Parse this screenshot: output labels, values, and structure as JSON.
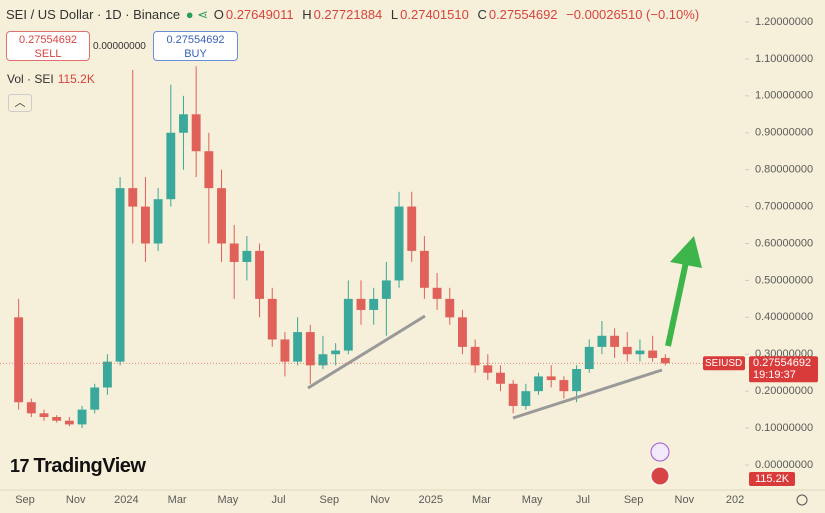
{
  "header": {
    "title": "SEI / US Dollar · 1D · Binance",
    "o_label": "O",
    "o": "0.27649011",
    "h_label": "H",
    "h": "0.27721884",
    "l_label": "L",
    "l": "0.27401510",
    "c_label": "C",
    "c": "0.27554692",
    "change": "−0.00026510 (−0.10%)"
  },
  "trade": {
    "sell_price": "0.27554692",
    "sell": "SELL",
    "spread": "0.00000000",
    "buy_price": "0.27554692",
    "buy": "BUY"
  },
  "volume": {
    "label": "Vol · SEI",
    "value": "115.2K",
    "tag": "115.2K"
  },
  "price_tag": {
    "symbol": "SEIUSD",
    "price": "0.27554692",
    "countdown": "19:19:37"
  },
  "logo": "TradingView",
  "chart_data": {
    "type": "candlestick",
    "categories": [
      null,
      "Sep",
      null,
      null,
      null,
      "Nov",
      null,
      null,
      null,
      "2024",
      null,
      null,
      null,
      "Mar",
      null,
      null,
      null,
      "May",
      null,
      null,
      null,
      "Jul",
      null,
      null,
      null,
      "Sep",
      null,
      null,
      null,
      "Nov",
      null,
      null,
      null,
      "2025",
      null,
      null,
      null,
      "Mar",
      null,
      null,
      null,
      "May",
      null,
      null,
      null,
      "Jul",
      null,
      null,
      null,
      "Sep",
      null,
      null,
      null,
      "Nov",
      null,
      null,
      null,
      "202",
      null
    ],
    "open": [
      0.4,
      0.17,
      0.14,
      0.13,
      0.12,
      0.11,
      0.15,
      0.21,
      0.28,
      0.75,
      0.7,
      0.6,
      0.72,
      0.9,
      0.95,
      0.85,
      0.75,
      0.6,
      0.55,
      0.58,
      0.45,
      0.34,
      0.28,
      0.36,
      0.27,
      0.3,
      0.31,
      0.45,
      0.42,
      0.45,
      0.5,
      0.7,
      0.58,
      0.48,
      0.45,
      0.4,
      0.32,
      0.27,
      0.25,
      0.22,
      0.16,
      0.2,
      0.24,
      0.23,
      0.2,
      0.26,
      0.32,
      0.35,
      0.32,
      0.3,
      0.31,
      0.29,
      null,
      null,
      null,
      null,
      null,
      null,
      null
    ],
    "high": [
      0.45,
      0.18,
      0.15,
      0.135,
      0.13,
      0.16,
      0.22,
      0.3,
      0.78,
      1.07,
      0.78,
      0.75,
      1.03,
      1.0,
      1.08,
      0.9,
      0.8,
      0.65,
      0.62,
      0.6,
      0.48,
      0.36,
      0.4,
      0.38,
      0.35,
      0.33,
      0.5,
      0.5,
      0.48,
      0.55,
      0.74,
      0.74,
      0.62,
      0.52,
      0.48,
      0.42,
      0.34,
      0.3,
      0.27,
      0.23,
      0.22,
      0.25,
      0.27,
      0.24,
      0.27,
      0.34,
      0.39,
      0.37,
      0.36,
      0.34,
      0.35,
      0.3,
      null,
      null,
      null,
      null,
      null,
      null,
      null
    ],
    "low": [
      0.15,
      0.13,
      0.12,
      0.115,
      0.105,
      0.1,
      0.14,
      0.19,
      0.27,
      0.6,
      0.55,
      0.58,
      0.7,
      0.8,
      0.78,
      0.6,
      0.55,
      0.45,
      0.5,
      0.4,
      0.32,
      0.24,
      0.27,
      0.22,
      0.26,
      0.27,
      0.3,
      0.38,
      0.38,
      0.35,
      0.48,
      0.55,
      0.45,
      0.42,
      0.38,
      0.3,
      0.25,
      0.23,
      0.2,
      0.14,
      0.15,
      0.19,
      0.21,
      0.18,
      0.17,
      0.25,
      0.3,
      0.29,
      0.28,
      0.28,
      0.28,
      0.27,
      null,
      null,
      null,
      null,
      null,
      null,
      null
    ],
    "close": [
      0.17,
      0.14,
      0.13,
      0.12,
      0.11,
      0.15,
      0.21,
      0.28,
      0.75,
      0.7,
      0.6,
      0.72,
      0.9,
      0.95,
      0.85,
      0.75,
      0.6,
      0.55,
      0.58,
      0.45,
      0.34,
      0.28,
      0.36,
      0.27,
      0.3,
      0.31,
      0.45,
      0.42,
      0.45,
      0.5,
      0.7,
      0.58,
      0.48,
      0.45,
      0.4,
      0.32,
      0.27,
      0.25,
      0.22,
      0.16,
      0.2,
      0.24,
      0.23,
      0.2,
      0.26,
      0.32,
      0.35,
      0.32,
      0.3,
      0.31,
      0.29,
      0.27554692,
      null,
      null,
      null,
      null,
      null,
      null,
      null
    ],
    "up_color": "#3aa89a",
    "down_color": "#e0605a",
    "ylim": [
      0,
      1.2
    ],
    "yticks": [
      {
        "value": 0,
        "label": "0.00000000"
      },
      {
        "value": 0.1,
        "label": "0.10000000"
      },
      {
        "value": 0.2,
        "label": "0.20000000"
      },
      {
        "value": 0.3,
        "label": "0.30000000"
      },
      {
        "value": 0.4,
        "label": "0.40000000"
      },
      {
        "value": 0.5,
        "label": "0.50000000"
      },
      {
        "value": 0.6,
        "label": "0.60000000"
      },
      {
        "value": 0.7,
        "label": "0.70000000"
      },
      {
        "value": 0.8,
        "label": "0.80000000"
      },
      {
        "value": 0.9,
        "label": "0.90000000"
      },
      {
        "value": 1.0,
        "label": "1.00000000"
      },
      {
        "value": 1.1,
        "label": "1.10000000"
      },
      {
        "value": 1.2,
        "label": "1.20000000"
      }
    ],
    "grid": false
  }
}
